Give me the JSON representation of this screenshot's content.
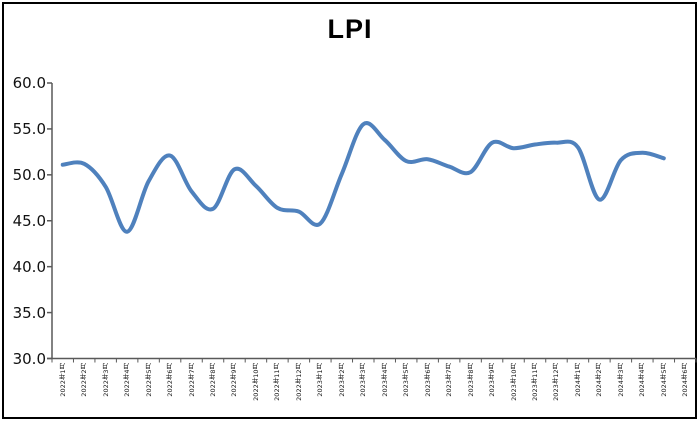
{
  "chart_data": {
    "type": "line",
    "title": "LPI",
    "legend": "none",
    "grid": false,
    "ylim": [
      30,
      60
    ],
    "y_tick_labels": [
      "60.0",
      "55.0",
      "50.0",
      "45.0",
      "40.0",
      "35.0",
      "30.0"
    ],
    "y_tick_values": [
      60,
      55,
      50,
      45,
      40,
      35,
      30
    ],
    "categories": [
      "2022年1月",
      "2022年2月",
      "2022年3月",
      "2022年4月",
      "2022年5月",
      "2022年6月",
      "2022年7月",
      "2022年8月",
      "2022年9月",
      "2022年10月",
      "2022年11月",
      "2022年12月",
      "2023年1月",
      "2023年2月",
      "2023年3月",
      "2023年4月",
      "2023年5月",
      "2023年6月",
      "2023年7月",
      "2023年8月",
      "2023年9月",
      "2023年10月",
      "2023年11月",
      "2023年12月",
      "2024年1月",
      "2024年2月",
      "2024年3月",
      "2024年4月",
      "2024年5月",
      "2024年6月"
    ],
    "series": [
      {
        "name": "LPI",
        "values": [
          51.1,
          51.2,
          48.7,
          43.8,
          49.3,
          52.1,
          48.2,
          46.3,
          50.6,
          48.8,
          46.4,
          46.0,
          44.7,
          50.1,
          55.5,
          53.8,
          51.5,
          51.7,
          50.9,
          50.3,
          53.5,
          52.9,
          53.3,
          53.5,
          53.0,
          47.3,
          51.6,
          52.4,
          51.8,
          null
        ]
      }
    ],
    "colors": {
      "line": "#4F81BD",
      "axis": "#595959",
      "text": "#000000",
      "frame_border": "#000000",
      "background": "#FFFFFF"
    }
  }
}
